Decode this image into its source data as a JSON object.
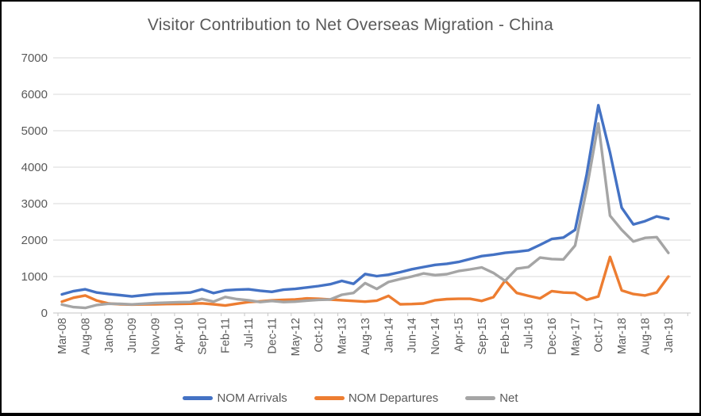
{
  "title": "Visitor Contribution to Net Overseas Migration - China",
  "colors": {
    "arrivals": "#4472C4",
    "departures": "#ED7D31",
    "net": "#A5A5A5",
    "text": "#595959",
    "gridline": "#D9D9D9",
    "axis_line": "#C6C6C6",
    "background": "#FFFFFF"
  },
  "chart_data": {
    "type": "line",
    "title": "Visitor Contribution to Net Overseas Migration - China",
    "xlabel": "",
    "ylabel": "",
    "y_axis": {
      "min": 0,
      "max": 7000,
      "step": 1000
    },
    "grid": true,
    "legend_position": "bottom",
    "x_labels": [
      "Mar-08",
      "Aug-08",
      "Jan-09",
      "Jun-09",
      "Nov-09",
      "Apr-10",
      "Sep-10",
      "Feb-11",
      "Jul-11",
      "Dec-11",
      "May-12",
      "Oct-12",
      "Mar-13",
      "Aug-13",
      "Jan-14",
      "Jun-14",
      "Nov-14",
      "Apr-15",
      "Sep-15",
      "Feb-16",
      "Jul-16",
      "Dec-16",
      "May-17",
      "Oct-17",
      "Mar-18",
      "Aug-18",
      "Jan-19"
    ],
    "points_per_label_interval": 2,
    "note": "values sampled every half label interval (approx. 2.5 months); even indices align with x_labels",
    "series": [
      {
        "name": "NOM Arrivals",
        "color": "#4472C4",
        "values": [
          510,
          600,
          650,
          560,
          520,
          490,
          455,
          490,
          520,
          530,
          545,
          560,
          650,
          545,
          620,
          640,
          650,
          610,
          580,
          640,
          660,
          700,
          740,
          790,
          880,
          800,
          1070,
          1010,
          1050,
          1120,
          1200,
          1260,
          1320,
          1350,
          1400,
          1480,
          1560,
          1600,
          1650,
          1680,
          1720,
          1870,
          2030,
          2070,
          2280,
          3800,
          5700,
          4400,
          2890,
          2430,
          2520,
          2650,
          2580
        ]
      },
      {
        "name": "NOM Departures",
        "color": "#ED7D31",
        "values": [
          310,
          420,
          480,
          340,
          260,
          240,
          230,
          235,
          240,
          245,
          250,
          255,
          265,
          240,
          205,
          255,
          300,
          320,
          345,
          360,
          370,
          400,
          390,
          370,
          350,
          330,
          310,
          340,
          470,
          240,
          245,
          260,
          350,
          380,
          390,
          390,
          330,
          435,
          890,
          550,
          470,
          400,
          600,
          560,
          550,
          360,
          455,
          1540,
          620,
          520,
          480,
          560,
          1000
        ]
      },
      {
        "name": "Net",
        "color": "#A5A5A5",
        "values": [
          230,
          160,
          140,
          220,
          255,
          250,
          235,
          255,
          275,
          285,
          295,
          300,
          385,
          310,
          440,
          380,
          350,
          300,
          330,
          300,
          310,
          340,
          360,
          370,
          500,
          550,
          820,
          660,
          850,
          930,
          1000,
          1085,
          1040,
          1065,
          1150,
          1195,
          1250,
          1100,
          880,
          1215,
          1260,
          1520,
          1480,
          1470,
          1850,
          3400,
          5200,
          2670,
          2280,
          1960,
          2060,
          2080,
          1650
        ]
      }
    ]
  },
  "legend": {
    "items": [
      "NOM Arrivals",
      "NOM Departures",
      "Net"
    ]
  }
}
